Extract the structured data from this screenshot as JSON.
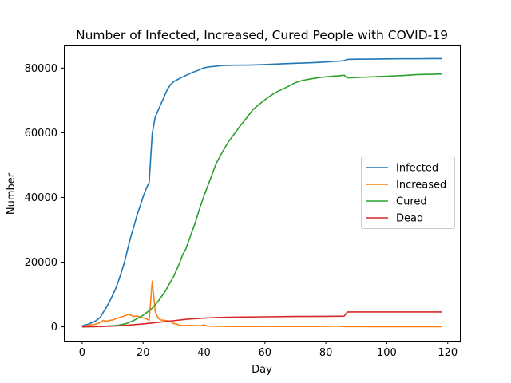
{
  "chart_data": {
    "type": "line",
    "title": "Number of Infected, Increased, Cured People with COVID-19",
    "xlabel": "Day",
    "ylabel": "Number",
    "xlim": [
      -6,
      124
    ],
    "ylim": [
      -4300,
      87000
    ],
    "xticks": [
      0,
      20,
      40,
      60,
      80,
      100,
      120
    ],
    "yticks": [
      0,
      20000,
      40000,
      60000,
      80000
    ],
    "grid": false,
    "legend_position": "center-right",
    "series": [
      {
        "name": "Infected",
        "color": "#1f77b4",
        "x": [
          0,
          2,
          4,
          5,
          6,
          7,
          8,
          9,
          10,
          11,
          12,
          13,
          14,
          15,
          16,
          17,
          18,
          19,
          20,
          21,
          22,
          23,
          24,
          25,
          26,
          27,
          28,
          29,
          30,
          32,
          34,
          36,
          38,
          40,
          42,
          44,
          46,
          48,
          50,
          55,
          60,
          65,
          70,
          75,
          80,
          83,
          85,
          86,
          87,
          90,
          95,
          100,
          105,
          110,
          115,
          118
        ],
        "y": [
          300,
          800,
          1600,
          2200,
          3000,
          4600,
          6100,
          7800,
          9800,
          11800,
          14400,
          17200,
          20400,
          24300,
          28000,
          31100,
          34500,
          37200,
          40200,
          42700,
          44700,
          59800,
          64900,
          67100,
          69200,
          71300,
          73500,
          74800,
          75800,
          76800,
          77700,
          78600,
          79300,
          80100,
          80400,
          80600,
          80800,
          80850,
          80900,
          80950,
          81100,
          81300,
          81500,
          81650,
          81900,
          82100,
          82200,
          82300,
          82700,
          82750,
          82800,
          82850,
          82900,
          82900,
          82950,
          82950
        ]
      },
      {
        "name": "Increased",
        "color": "#ff7f0e",
        "x": [
          0,
          2,
          3,
          4,
          5,
          6,
          7,
          8,
          9,
          10,
          11,
          12,
          13,
          14,
          15,
          16,
          17,
          18,
          19,
          20,
          21,
          22,
          23,
          24,
          25,
          26,
          27,
          28,
          29,
          30,
          31,
          32,
          34,
          36,
          38,
          39,
          40,
          41,
          42,
          45,
          50,
          55,
          60,
          65,
          70,
          75,
          80,
          84,
          86,
          88,
          90,
          95,
          100,
          105,
          110,
          115,
          118
        ],
        "y": [
          0,
          500,
          600,
          700,
          1000,
          1400,
          2000,
          1700,
          2000,
          2100,
          2500,
          2800,
          3100,
          3400,
          3800,
          3600,
          3200,
          3400,
          3000,
          2800,
          2500,
          2000,
          14100,
          4600,
          2600,
          2100,
          2000,
          1900,
          1700,
          1000,
          900,
          400,
          400,
          400,
          300,
          300,
          600,
          200,
          200,
          150,
          100,
          100,
          120,
          100,
          100,
          100,
          120,
          200,
          60,
          50,
          50,
          40,
          30,
          30,
          30,
          30,
          30
        ]
      },
      {
        "name": "Cured",
        "color": "#2ca02c",
        "x": [
          0,
          5,
          10,
          12,
          14,
          15,
          16,
          17,
          18,
          19,
          20,
          21,
          22,
          23,
          24,
          25,
          26,
          27,
          28,
          29,
          30,
          31,
          32,
          33,
          34,
          35,
          36,
          37,
          38,
          39,
          40,
          42,
          44,
          46,
          48,
          50,
          52,
          54,
          56,
          58,
          60,
          62,
          64,
          66,
          68,
          70,
          72,
          74,
          76,
          78,
          80,
          82,
          84,
          86,
          87,
          90,
          95,
          100,
          105,
          110,
          115,
          118
        ],
        "y": [
          0,
          100,
          300,
          500,
          900,
          1200,
          1600,
          2000,
          2500,
          3000,
          3600,
          4300,
          5000,
          5800,
          6800,
          8000,
          9300,
          10600,
          12200,
          13900,
          15500,
          17600,
          19800,
          22300,
          24000,
          26600,
          29300,
          31800,
          34900,
          37800,
          40500,
          45500,
          50500,
          54000,
          57200,
          59700,
          62300,
          64600,
          67100,
          68700,
          70200,
          71600,
          72700,
          73600,
          74500,
          75500,
          76100,
          76500,
          76800,
          77100,
          77300,
          77500,
          77600,
          77800,
          77000,
          77100,
          77300,
          77500,
          77700,
          78000,
          78100,
          78200
        ]
      },
      {
        "name": "Dead",
        "color": "#d62728",
        "x": [
          0,
          5,
          10,
          15,
          20,
          25,
          30,
          35,
          40,
          45,
          50,
          60,
          70,
          80,
          86,
          87,
          90,
          100,
          110,
          118
        ],
        "y": [
          0,
          50,
          200,
          500,
          900,
          1400,
          1900,
          2400,
          2700,
          2900,
          3000,
          3100,
          3200,
          3250,
          3300,
          4600,
          4600,
          4600,
          4600,
          4600
        ]
      }
    ]
  }
}
